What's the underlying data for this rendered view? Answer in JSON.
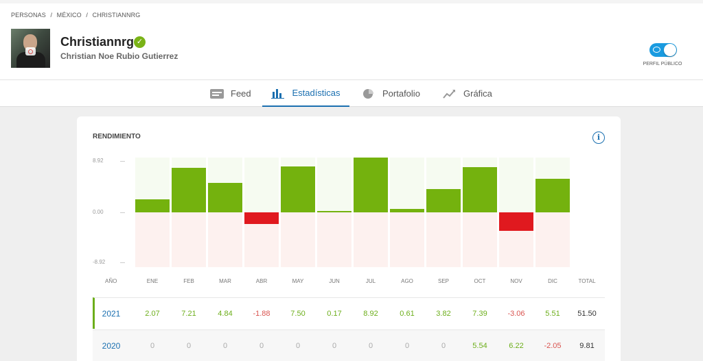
{
  "breadcrumb": [
    "PERSONAS",
    "/",
    "MÉXICO",
    "/",
    "CHRISTIANNRG"
  ],
  "profile": {
    "username": "Christiannrg",
    "full_name": "Christian Noe Rubio Gutierrez",
    "public_label": "PERFIL PÚBLICO",
    "public_enabled": true
  },
  "tabs": [
    {
      "label": "Feed",
      "icon": "feed-icon",
      "active": false
    },
    {
      "label": "Estadísticas",
      "icon": "bar-chart-icon",
      "active": true
    },
    {
      "label": "Portafolio",
      "icon": "pie-chart-icon",
      "active": false
    },
    {
      "label": "Gráfica",
      "icon": "line-chart-icon",
      "active": false
    }
  ],
  "card": {
    "title": "RENDIMIENTO",
    "info_icon": "info-icon"
  },
  "chart_data": {
    "type": "bar",
    "categories": [
      "ENE",
      "FEB",
      "MAR",
      "ABR",
      "MAY",
      "JUN",
      "JUL",
      "AGO",
      "SEP",
      "OCT",
      "NOV",
      "DIC"
    ],
    "series": [
      {
        "values": [
          2.07,
          7.21,
          4.84,
          -1.88,
          7.5,
          0.17,
          8.92,
          0.61,
          3.82,
          7.39,
          -3.06,
          5.51
        ]
      }
    ],
    "yticks": [
      "8.92",
      "0.00",
      "-8.92"
    ],
    "ylim": [
      -8.92,
      8.92
    ],
    "colors": {
      "positive": "#74b20e",
      "negative": "#e0191f"
    }
  },
  "table": {
    "headers": [
      "AÑO",
      "ENE",
      "FEB",
      "MAR",
      "ABR",
      "MAY",
      "JUN",
      "JUL",
      "AGO",
      "SEP",
      "OCT",
      "NOV",
      "DIC",
      "TOTAL"
    ],
    "rows": [
      {
        "year": "2021",
        "values": [
          "2.07",
          "7.21",
          "4.84",
          "-1.88",
          "7.50",
          "0.17",
          "8.92",
          "0.61",
          "3.82",
          "7.39",
          "-3.06",
          "5.51"
        ],
        "total": "51.50"
      },
      {
        "year": "2020",
        "values": [
          "0",
          "0",
          "0",
          "0",
          "0",
          "0",
          "0",
          "0",
          "0",
          "5.54",
          "6.22",
          "-2.05"
        ],
        "total": "9.81"
      }
    ]
  }
}
